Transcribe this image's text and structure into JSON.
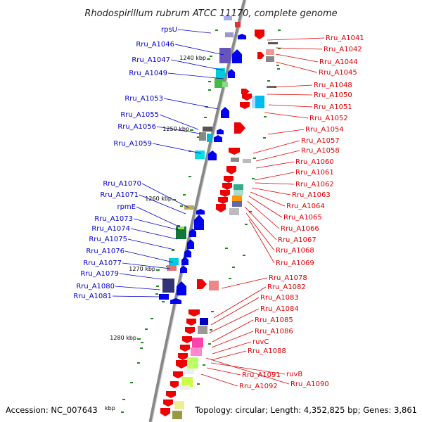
{
  "title": "Rhodospirillum rubrum ATCC 11170, complete genome",
  "footer": {
    "accession": "Accession: NC_007643",
    "kbp_unit": "kbp",
    "topology": "Topology: circular; Length: 4,352,825 bp; Genes: 3,861"
  },
  "colors": {
    "left_label": "#0000cc",
    "right_label": "#dd0000",
    "left_gene": "#0000ee",
    "right_gene": "#ee0000",
    "backbone": "#888888",
    "tick": "#228822"
  },
  "scale_marks": [
    "1240 kbp",
    "1250 kbp",
    "1260 kbp",
    "1270 kbp",
    "1280 kbp"
  ],
  "left_labels": [
    "rpsU",
    "Rru_A1046",
    "Rru_A1047",
    "Rru_A1049",
    "Rru_A1053",
    "Rru_A1055",
    "Rru_A1056",
    "Rru_A1059",
    "Rru_A1070",
    "Rru_A1071",
    "rpmE",
    "Rru_A1073",
    "Rru_A1074",
    "Rru_A1075",
    "Rru_A1076",
    "Rru_A1077",
    "Rru_A1079",
    "Rru_A1080",
    "Rru_A1081"
  ],
  "right_labels": [
    "Rru_A1041",
    "Rru_A1042",
    "Rru_A1044",
    "Rru_A1045",
    "Rru_A1048",
    "Rru_A1050",
    "Rru_A1051",
    "Rru_A1052",
    "Rru_A1054",
    "Rru_A1057",
    "Rru_A1058",
    "Rru_A1060",
    "Rru_A1061",
    "Rru_A1062",
    "Rru_A1063",
    "Rru_A1064",
    "Rru_A1065",
    "Rru_A1066",
    "Rru_A1067",
    "Rru_A1068",
    "Rru_A1069",
    "Rru_A1078",
    "Rru_A1082",
    "Rru_A1083",
    "Rru_A1084",
    "Rru_A1085",
    "Rru_A1086",
    "ruvC",
    "Rru_A1088",
    "ruvB",
    "Rru_A1091",
    "Rru_A1090",
    "Rru_A1092"
  ]
}
